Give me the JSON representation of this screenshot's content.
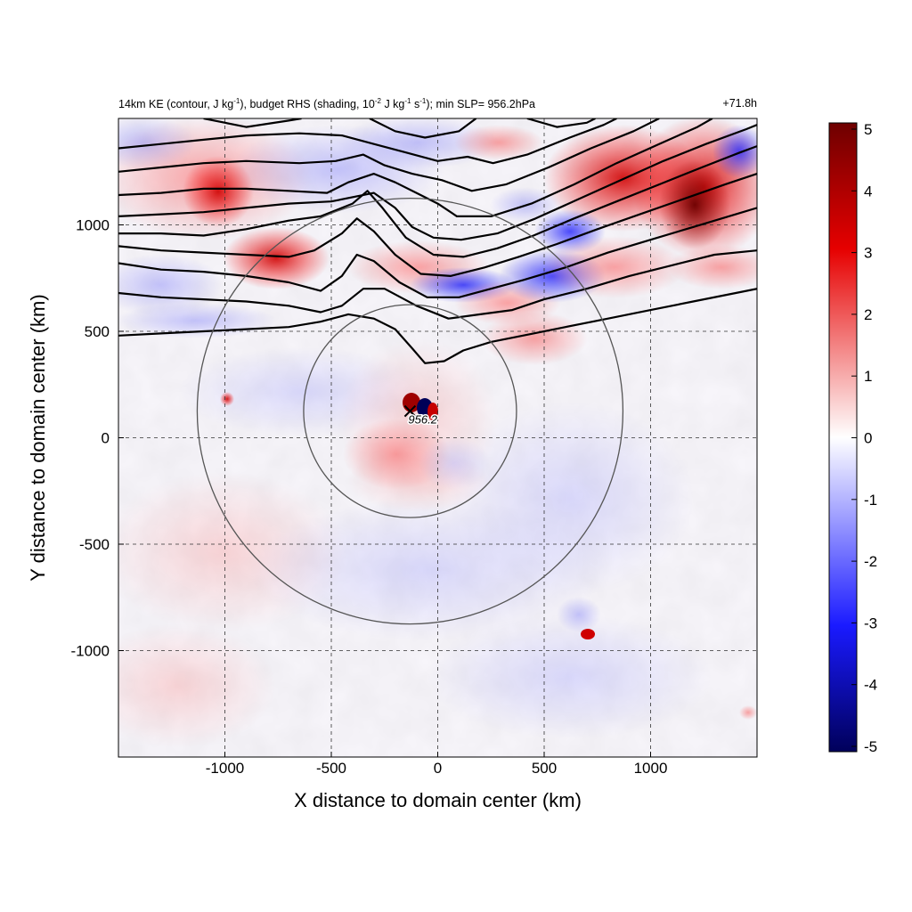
{
  "chart_data": {
    "type": "heatmap",
    "title": {
      "parts": [
        {
          "t": "14km KE (contour, J kg"
        },
        {
          "t": "-1",
          "sup": true
        },
        {
          "t": "), budget RHS (shading, 10"
        },
        {
          "t": "-2",
          "sup": true
        },
        {
          "t": " J kg"
        },
        {
          "t": "-1",
          "sup": true
        },
        {
          "t": " s"
        },
        {
          "t": "-1",
          "sup": true
        },
        {
          "t": "); min SLP= 956.2hPa"
        }
      ],
      "right": "+71.8h"
    },
    "xlabel": "X distance to domain center (km)",
    "ylabel": "Y distance to domain center (km)",
    "xlim": [
      -1500,
      1500
    ],
    "ylim": [
      -1500,
      1500
    ],
    "xticks": [
      -1000,
      -500,
      0,
      500,
      1000
    ],
    "yticks": [
      -1000,
      -500,
      0,
      500,
      1000
    ],
    "grid": "dashed",
    "colorbar": {
      "range": [
        -5,
        5
      ],
      "ticks": [
        5,
        4,
        3,
        2,
        1,
        0,
        -1,
        -2,
        -3,
        -4,
        -5
      ],
      "colors": [
        "#00005a",
        "#0000ff",
        "#ffffff",
        "#ff0000",
        "#6e0000"
      ],
      "position": "right"
    },
    "storm_center": {
      "x": -130,
      "y": 125,
      "label": "956.2"
    },
    "range_rings": [
      {
        "cx": -130,
        "cy": 125,
        "radius": 500
      },
      {
        "cx": -130,
        "cy": 125,
        "radius": 1000
      }
    ],
    "ke_contours": [
      [
        [
          -1500,
          480
        ],
        [
          -1300,
          490
        ],
        [
          -1100,
          500
        ],
        [
          -900,
          510
        ],
        [
          -700,
          520
        ],
        [
          -550,
          545
        ],
        [
          -420,
          580
        ],
        [
          -300,
          560
        ],
        [
          -200,
          510
        ],
        [
          -120,
          420
        ],
        [
          -60,
          350
        ],
        [
          30,
          360
        ],
        [
          120,
          410
        ],
        [
          250,
          450
        ],
        [
          350,
          470
        ],
        [
          450,
          490
        ],
        [
          600,
          520
        ],
        [
          800,
          560
        ],
        [
          1000,
          600
        ],
        [
          1200,
          640
        ],
        [
          1400,
          680
        ],
        [
          1500,
          700
        ]
      ],
      [
        [
          -1500,
          680
        ],
        [
          -1300,
          660
        ],
        [
          -1100,
          650
        ],
        [
          -900,
          640
        ],
        [
          -700,
          620
        ],
        [
          -550,
          590
        ],
        [
          -450,
          620
        ],
        [
          -350,
          700
        ],
        [
          -250,
          700
        ],
        [
          -100,
          620
        ],
        [
          50,
          560
        ],
        [
          200,
          580
        ],
        [
          350,
          600
        ],
        [
          500,
          650
        ],
        [
          700,
          700
        ],
        [
          900,
          760
        ],
        [
          1100,
          810
        ],
        [
          1300,
          860
        ],
        [
          1500,
          880
        ]
      ],
      [
        [
          -1500,
          820
        ],
        [
          -1300,
          790
        ],
        [
          -1100,
          780
        ],
        [
          -900,
          760
        ],
        [
          -700,
          730
        ],
        [
          -550,
          690
        ],
        [
          -450,
          760
        ],
        [
          -380,
          860
        ],
        [
          -300,
          830
        ],
        [
          -180,
          730
        ],
        [
          -50,
          660
        ],
        [
          100,
          660
        ],
        [
          250,
          700
        ],
        [
          400,
          740
        ],
        [
          600,
          800
        ],
        [
          800,
          870
        ],
        [
          1000,
          930
        ],
        [
          1200,
          990
        ],
        [
          1400,
          1050
        ],
        [
          1500,
          1080
        ]
      ],
      [
        [
          -1500,
          900
        ],
        [
          -1300,
          880
        ],
        [
          -1100,
          870
        ],
        [
          -900,
          860
        ],
        [
          -700,
          850
        ],
        [
          -580,
          880
        ],
        [
          -450,
          960
        ],
        [
          -380,
          1030
        ],
        [
          -300,
          970
        ],
        [
          -200,
          860
        ],
        [
          -80,
          770
        ],
        [
          60,
          760
        ],
        [
          220,
          800
        ],
        [
          380,
          850
        ],
        [
          560,
          910
        ],
        [
          750,
          980
        ],
        [
          950,
          1050
        ],
        [
          1150,
          1120
        ],
        [
          1350,
          1190
        ],
        [
          1500,
          1240
        ]
      ],
      [
        [
          -1500,
          960
        ],
        [
          -1300,
          960
        ],
        [
          -1100,
          950
        ],
        [
          -900,
          980
        ],
        [
          -700,
          1020
        ],
        [
          -550,
          1040
        ],
        [
          -400,
          1100
        ],
        [
          -330,
          1160
        ],
        [
          -260,
          1080
        ],
        [
          -150,
          940
        ],
        [
          -20,
          860
        ],
        [
          120,
          850
        ],
        [
          280,
          890
        ],
        [
          450,
          950
        ],
        [
          640,
          1030
        ],
        [
          840,
          1110
        ],
        [
          1040,
          1190
        ],
        [
          1240,
          1270
        ],
        [
          1420,
          1340
        ],
        [
          1500,
          1370
        ]
      ],
      [
        [
          -1500,
          1040
        ],
        [
          -1300,
          1050
        ],
        [
          -1100,
          1060
        ],
        [
          -900,
          1080
        ],
        [
          -700,
          1100
        ],
        [
          -500,
          1110
        ],
        [
          -300,
          1150
        ],
        [
          -200,
          1080
        ],
        [
          -120,
          990
        ],
        [
          -20,
          940
        ],
        [
          110,
          930
        ],
        [
          280,
          960
        ],
        [
          460,
          1030
        ],
        [
          660,
          1120
        ],
        [
          860,
          1210
        ],
        [
          1060,
          1300
        ],
        [
          1260,
          1380
        ],
        [
          1450,
          1450
        ],
        [
          1500,
          1470
        ]
      ],
      [
        [
          -1500,
          1140
        ],
        [
          -1300,
          1150
        ],
        [
          -1100,
          1170
        ],
        [
          -900,
          1170
        ],
        [
          -700,
          1160
        ],
        [
          -520,
          1150
        ],
        [
          -420,
          1200
        ],
        [
          -300,
          1240
        ],
        [
          -200,
          1200
        ],
        [
          -100,
          1150
        ],
        [
          0,
          1100
        ],
        [
          90,
          1040
        ],
        [
          250,
          1040
        ],
        [
          440,
          1100
        ],
        [
          640,
          1190
        ],
        [
          840,
          1290
        ],
        [
          1040,
          1380
        ],
        [
          1220,
          1460
        ],
        [
          1290,
          1500
        ]
      ],
      [
        [
          -1500,
          1250
        ],
        [
          -1300,
          1270
        ],
        [
          -1100,
          1290
        ],
        [
          -900,
          1300
        ],
        [
          -650,
          1290
        ],
        [
          -480,
          1300
        ],
        [
          -350,
          1330
        ],
        [
          -250,
          1280
        ],
        [
          -120,
          1240
        ],
        [
          20,
          1210
        ],
        [
          160,
          1160
        ],
        [
          320,
          1190
        ],
        [
          520,
          1270
        ],
        [
          720,
          1360
        ],
        [
          920,
          1440
        ],
        [
          1040,
          1500
        ]
      ],
      [
        [
          -1500,
          1360
        ],
        [
          -1300,
          1380
        ],
        [
          -1100,
          1400
        ],
        [
          -900,
          1420
        ],
        [
          -650,
          1430
        ],
        [
          -450,
          1420
        ],
        [
          -300,
          1380
        ],
        [
          -150,
          1340
        ],
        [
          0,
          1300
        ],
        [
          140,
          1320
        ],
        [
          260,
          1290
        ],
        [
          420,
          1330
        ],
        [
          620,
          1410
        ],
        [
          780,
          1470
        ],
        [
          840,
          1500
        ]
      ],
      [
        [
          -1100,
          1500
        ],
        [
          -900,
          1460
        ],
        [
          -700,
          1490
        ],
        [
          -640,
          1500
        ]
      ],
      [
        [
          -320,
          1500
        ],
        [
          -200,
          1440
        ],
        [
          -60,
          1410
        ],
        [
          100,
          1440
        ],
        [
          180,
          1500
        ]
      ],
      [
        [
          420,
          1500
        ],
        [
          560,
          1460
        ],
        [
          700,
          1480
        ],
        [
          740,
          1500
        ]
      ]
    ]
  }
}
